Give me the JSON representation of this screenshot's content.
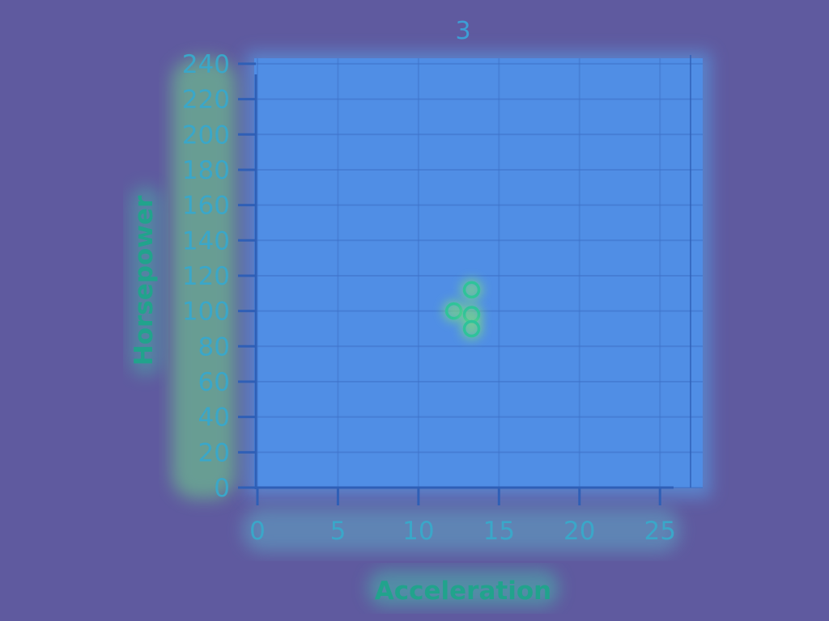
{
  "chart_data": {
    "type": "scatter",
    "title": "3",
    "xlabel": "Acceleration",
    "ylabel": "Horsepower",
    "xlim": [
      0,
      27
    ],
    "ylim": [
      0,
      245
    ],
    "xticks": [
      0,
      5,
      10,
      15,
      20,
      25
    ],
    "yticks": [
      0,
      20,
      40,
      60,
      80,
      100,
      120,
      140,
      160,
      180,
      200,
      220,
      240
    ],
    "grid": true,
    "series": [
      {
        "x": [
          12.2,
          13.3,
          13.3,
          13.3
        ],
        "y": [
          100,
          112,
          98,
          90
        ]
      }
    ]
  },
  "colors": {
    "background": "#5f5a9f",
    "plot_area": "#4f8fe8",
    "marker": "#2fc39a",
    "tick_text": "#3aa7c9",
    "axis_title": "#21a38c"
  }
}
